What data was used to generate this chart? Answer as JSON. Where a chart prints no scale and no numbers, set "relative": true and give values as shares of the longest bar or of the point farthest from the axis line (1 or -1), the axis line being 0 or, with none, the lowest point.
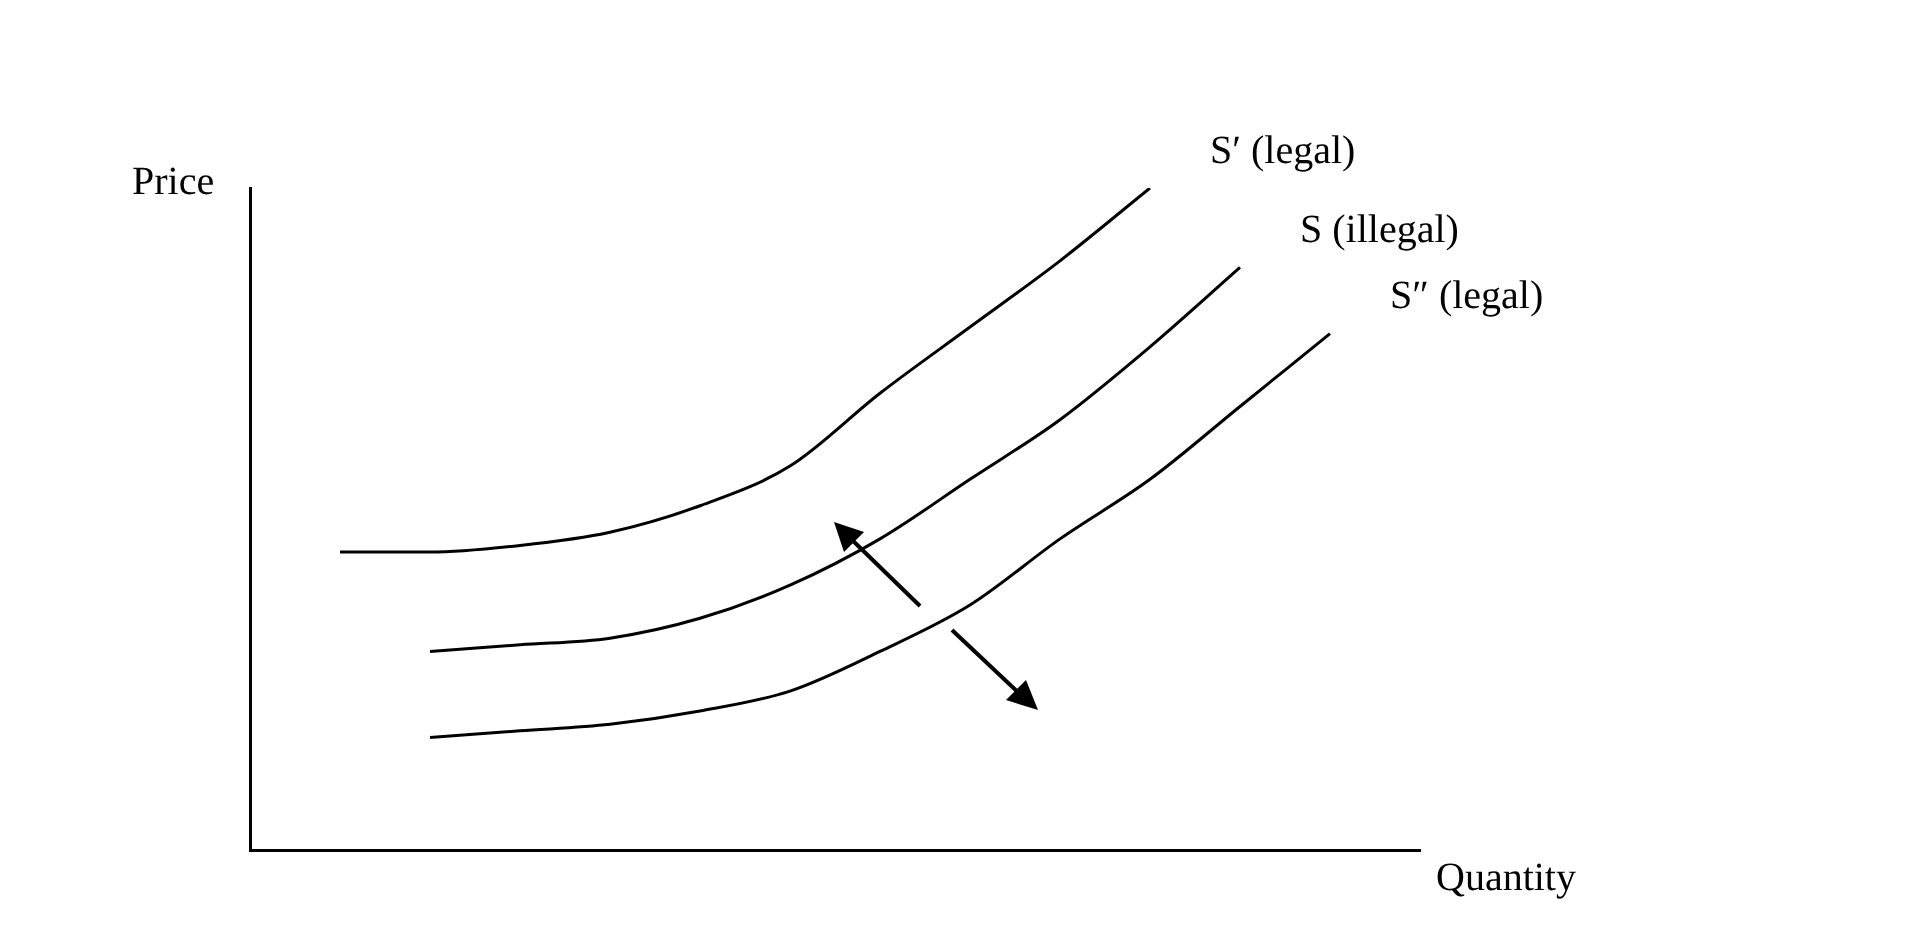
{
  "chart_data": {
    "type": "line",
    "relative": true,
    "xlabel": "Quantity",
    "ylabel": "Price",
    "marker": "none",
    "legend": false,
    "categories": [
      null,
      null,
      null,
      null,
      null,
      null,
      null,
      null,
      null,
      null,
      null,
      null,
      null,
      null
    ],
    "series": [
      {
        "name": "S′ (legal)",
        "color": "#000000",
        "values": [
          null,
          0.45,
          0.45,
          0.46,
          0.48,
          0.52,
          0.58,
          0.69,
          0.79,
          0.89,
          1.0,
          null,
          null,
          null
        ]
      },
      {
        "name": "S (illegal)",
        "color": "#000000",
        "values": [
          null,
          null,
          0.3,
          0.31,
          0.32,
          0.35,
          0.4,
          0.47,
          0.56,
          0.65,
          0.76,
          0.88,
          null,
          null
        ]
      },
      {
        "name": "S″ (legal)",
        "color": "#000000",
        "values": [
          null,
          null,
          0.17,
          0.18,
          0.19,
          0.21,
          0.24,
          0.3,
          0.37,
          0.47,
          0.56,
          0.67,
          0.78,
          null
        ]
      }
    ]
  }
}
